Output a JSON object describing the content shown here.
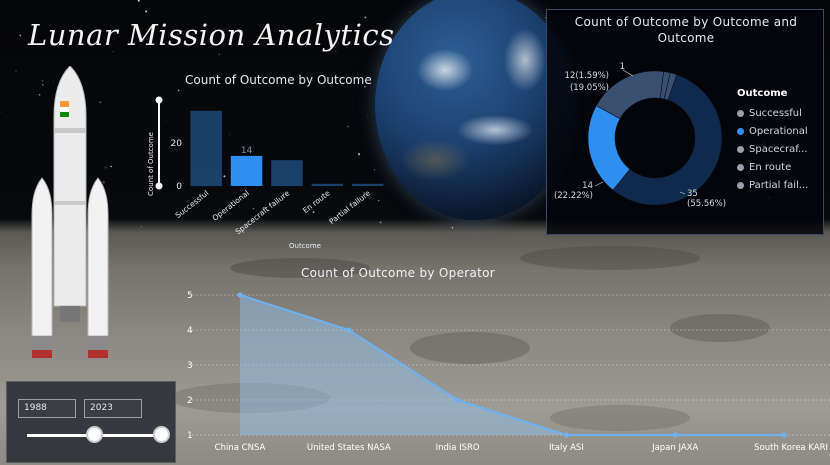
{
  "title": "Lunar Mission Analytics",
  "colors": {
    "bar_default": "#1f4a7a",
    "bar_selected": "#2e8ff0",
    "donut_main": "#102a4d",
    "donut_highlight": "#2e8ff0",
    "donut_other": "#3a5070",
    "line": "#6fb0ef",
    "area": "#8fc3f5"
  },
  "icons": {
    "rocket": "rocket-illustration",
    "earth": "earth-globe",
    "moon": "moon-surface"
  },
  "slicer": {
    "start_year": "1988",
    "end_year": "2023",
    "start_fraction": 0.5,
    "end_fraction": 1.0
  },
  "chart_data": [
    {
      "id": "bar",
      "type": "bar",
      "title": "Count of Outcome by Outcome",
      "xlabel": "Outcome",
      "ylabel": "Count of Outcome",
      "categories": [
        "Successful",
        "Operational",
        "Spacecraft failure",
        "En route",
        "Partial failure"
      ],
      "values": [
        35,
        14,
        12,
        1,
        1
      ],
      "highlighted_index": 1,
      "data_label": "14",
      "y_ticks": [
        "0",
        "20"
      ],
      "ylim": [
        0,
        40
      ]
    },
    {
      "id": "donut",
      "type": "pie",
      "title": "Count of Outcome by Outcome and Outcome",
      "legend_title": "Outcome",
      "legend_position": "right",
      "legend": [
        "Successful",
        "Operational",
        "Spacecraf...",
        "En route",
        "Partial fail..."
      ],
      "values": [
        35,
        14,
        12,
        1,
        1
      ],
      "highlighted_index": 1,
      "labels": [
        "35\n(55.56%)",
        "14\n(22.22%)",
        "12\n(19.05%)",
        "1\n(1.59%)",
        "1"
      ]
    },
    {
      "id": "line",
      "type": "area",
      "title": "Count of Outcome by Operator",
      "categories": [
        "China CNSA",
        "United States NASA",
        "India ISRO",
        "Italy ASI",
        "Japan JAXA",
        "South Korea KARI"
      ],
      "values": [
        5,
        4,
        2,
        1,
        1,
        1
      ],
      "y_ticks": [
        "1",
        "2",
        "3",
        "4",
        "5"
      ],
      "ylim": [
        1,
        5
      ],
      "grid": true
    }
  ]
}
